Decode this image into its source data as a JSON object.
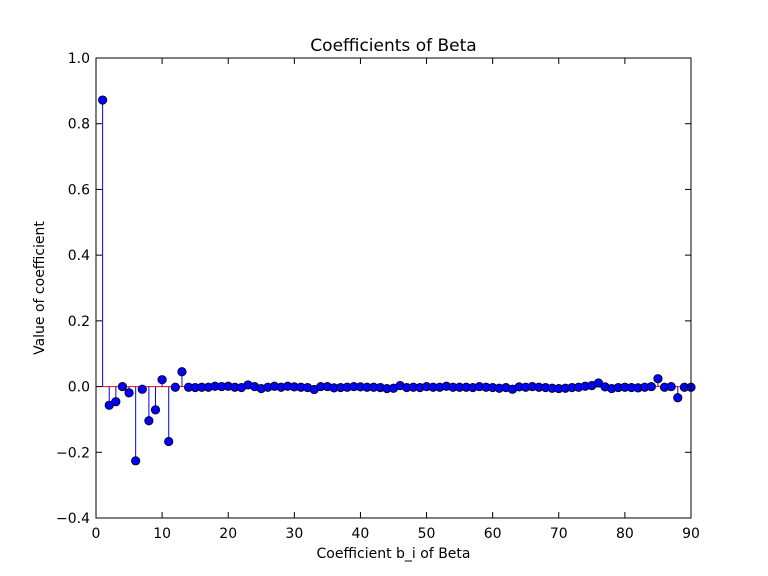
{
  "chart_data": {
    "type": "stem",
    "title": "Coefficients of Beta",
    "xlabel": "Coefficient b_i of Beta",
    "ylabel": "Value of coefficient",
    "xlim": [
      0,
      90
    ],
    "ylim": [
      -0.4,
      1.0
    ],
    "xticks": [
      0,
      10,
      20,
      30,
      40,
      50,
      60,
      70,
      80,
      90
    ],
    "xtick_labels": [
      "0",
      "10",
      "20",
      "30",
      "40",
      "50",
      "60",
      "70",
      "80",
      "90"
    ],
    "yticks": [
      1.0,
      0.8,
      0.6,
      0.4,
      0.2,
      0.0,
      -0.2,
      -0.4
    ],
    "ytick_labels": [
      "1.0",
      "0.8",
      "0.6",
      "0.4",
      "0.2",
      "0.0",
      "−0.2",
      "−0.4"
    ],
    "grid": false,
    "baseline": 0.0,
    "colors": {
      "marker": "#0000ff",
      "stem": "#0000ff",
      "baseline": "#ff0000",
      "marker_edge": "#000000"
    },
    "x": [
      1,
      2,
      3,
      4,
      5,
      6,
      7,
      8,
      9,
      10,
      11,
      12,
      13,
      14,
      15,
      16,
      17,
      18,
      19,
      20,
      21,
      22,
      23,
      24,
      25,
      26,
      27,
      28,
      29,
      30,
      31,
      32,
      33,
      34,
      35,
      36,
      37,
      38,
      39,
      40,
      41,
      42,
      43,
      44,
      45,
      46,
      47,
      48,
      49,
      50,
      51,
      52,
      53,
      54,
      55,
      56,
      57,
      58,
      59,
      60,
      61,
      62,
      63,
      64,
      65,
      66,
      67,
      68,
      69,
      70,
      71,
      72,
      73,
      74,
      75,
      76,
      77,
      78,
      79,
      80,
      81,
      82,
      83,
      84,
      85,
      86,
      87,
      88,
      89,
      90
    ],
    "values": [
      0.872,
      -0.057,
      -0.046,
      0.0,
      -0.019,
      -0.226,
      -0.008,
      -0.104,
      -0.071,
      0.021,
      -0.167,
      -0.002,
      0.045,
      -0.002,
      -0.003,
      -0.002,
      -0.002,
      0.001,
      0.0,
      0.001,
      -0.002,
      -0.003,
      0.005,
      0.0,
      -0.006,
      -0.002,
      0.001,
      -0.002,
      0.001,
      -0.001,
      -0.002,
      -0.003,
      -0.009,
      0.0,
      0.0,
      -0.004,
      -0.003,
      -0.002,
      0.0,
      -0.001,
      -0.002,
      -0.002,
      -0.003,
      -0.006,
      -0.005,
      0.003,
      -0.003,
      -0.002,
      -0.003,
      0.0,
      -0.002,
      -0.002,
      0.001,
      -0.002,
      -0.002,
      -0.002,
      -0.003,
      0.0,
      -0.002,
      -0.003,
      -0.005,
      -0.003,
      -0.008,
      -0.001,
      -0.002,
      0.0,
      -0.002,
      -0.003,
      -0.005,
      -0.006,
      -0.005,
      -0.003,
      -0.002,
      0.001,
      0.003,
      0.011,
      -0.001,
      -0.006,
      -0.003,
      -0.002,
      -0.003,
      -0.004,
      -0.002,
      0.0,
      0.024,
      -0.002,
      0.0,
      -0.034,
      -0.002,
      -0.002
    ]
  }
}
